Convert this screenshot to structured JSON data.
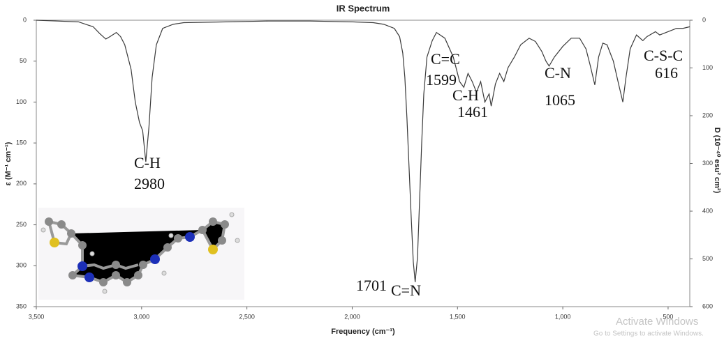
{
  "chart_data": {
    "type": "line",
    "title": "IR Spectrum",
    "x_label": "Frequency (cm⁻¹)",
    "y_label": "ε (M⁻¹ cm⁻¹)",
    "y2_label": "D (10⁻⁴⁰ esu² cm²)",
    "color": "#3a3a3a",
    "x": [
      3500,
      3400,
      3300,
      3230,
      3200,
      3170,
      3150,
      3120,
      3100,
      3080,
      3050,
      3030,
      3010,
      2995,
      2980,
      2965,
      2950,
      2930,
      2900,
      2850,
      2800,
      2600,
      2400,
      2200,
      2000,
      1900,
      1850,
      1800,
      1775,
      1760,
      1750,
      1740,
      1730,
      1720,
      1710,
      1701,
      1690,
      1680,
      1670,
      1660,
      1645,
      1620,
      1600,
      1560,
      1520,
      1490,
      1470,
      1450,
      1430,
      1410,
      1390,
      1370,
      1350,
      1340,
      1320,
      1300,
      1280,
      1260,
      1230,
      1200,
      1160,
      1130,
      1100,
      1080,
      1065,
      1040,
      1000,
      960,
      920,
      890,
      870,
      848,
      830,
      810,
      790,
      760,
      735,
      715,
      700,
      680,
      650,
      620,
      600,
      560,
      540,
      500,
      460,
      430,
      397
    ],
    "values": [
      0,
      1,
      2,
      8,
      16,
      23,
      20,
      15,
      20,
      30,
      60,
      100,
      125,
      135,
      173,
      130,
      70,
      30,
      10,
      5,
      3,
      2,
      1,
      1,
      2,
      3,
      5,
      10,
      20,
      40,
      70,
      120,
      180,
      240,
      295,
      320,
      290,
      220,
      150,
      90,
      45,
      25,
      15,
      22,
      45,
      75,
      82,
      65,
      75,
      88,
      75,
      100,
      90,
      105,
      78,
      65,
      75,
      58,
      45,
      30,
      22,
      26,
      38,
      50,
      56,
      45,
      32,
      22,
      22,
      35,
      55,
      79,
      45,
      28,
      30,
      50,
      78,
      100,
      70,
      35,
      18,
      25,
      20,
      14,
      18,
      14,
      10,
      10,
      8
    ],
    "xlim": [
      3500,
      397
    ],
    "xticks": [
      {
        "value": 3500,
        "label": "3,500"
      },
      {
        "value": 3000,
        "label": "3,000"
      },
      {
        "value": 2500,
        "label": "2,500"
      },
      {
        "value": 2000,
        "label": "2,000"
      },
      {
        "value": 1500,
        "label": "1,500"
      },
      {
        "value": 1000,
        "label": "1,000"
      },
      500
    ],
    "ylim": [
      350,
      0
    ],
    "yticks": [
      0,
      50,
      100,
      150,
      200,
      250,
      300,
      350
    ],
    "y2lim": [
      600,
      0
    ],
    "y2ticks": [
      0,
      100,
      200,
      300,
      400,
      500,
      600
    ],
    "annotations": [
      "C-H",
      "2980",
      "C=C",
      "1599",
      "C-H",
      "1461",
      "C-N",
      "1065",
      "C-S-C",
      "616",
      "1701",
      "C=N"
    ]
  },
  "watermark": {
    "title": "Activate Windows",
    "subtitle": "Go to Settings to activate Windows."
  }
}
